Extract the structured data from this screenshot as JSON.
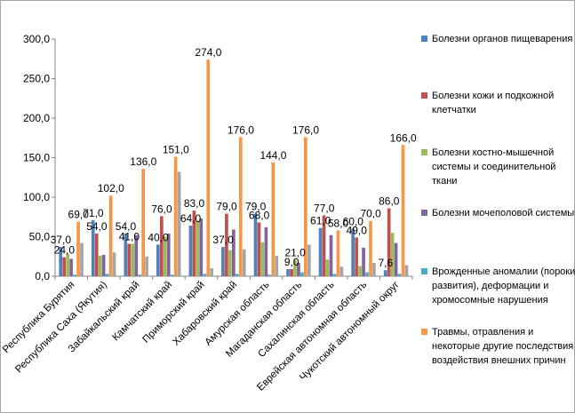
{
  "chart_data": {
    "type": "bar",
    "ylim": [
      0,
      300
    ],
    "yticks": [
      "0,0",
      "50,0",
      "100,0",
      "150,0",
      "200,0",
      "250,0",
      "300,0"
    ],
    "grid": false,
    "legend_position": "right",
    "categories": [
      "Республика Бурятия",
      "Республика Саха (Якутия)",
      "Забайкальский край",
      "Камчатский край",
      "Приморский край",
      "Хабаровский край",
      "Амурская область",
      "Магаданская область",
      "Сахалинская область",
      "Еврейская автономная область",
      "Чукотский автономный округ"
    ],
    "series": [
      {
        "name": "Болезни органов пищеварения",
        "color": "#4f81bd",
        "values": [
          37,
          71,
          54,
          40,
          64,
          37,
          79,
          9,
          61,
          60,
          7.6
        ]
      },
      {
        "name": "Болезни кожи и подкожной клетчатки",
        "color": "#c0504d",
        "values": [
          24,
          54,
          41,
          76,
          83,
          79,
          68,
          9,
          77,
          49,
          86
        ]
      },
      {
        "name": "Болезни костно-мышечной системы и соединительной ткани",
        "color": "#9bbb59",
        "values": [
          28,
          26,
          41,
          50,
          70,
          33,
          43,
          21,
          21,
          13,
          55
        ]
      },
      {
        "name": "Болезни мочеполовой системы",
        "color": "#8064a2",
        "values": [
          22,
          27,
          52,
          54,
          73,
          59,
          62,
          17,
          52,
          36,
          42
        ]
      },
      {
        "name": "Врожденные аномалии (пороки развития), деформации и хромосомные нарушения",
        "color": "#4bacc6",
        "values": [
          2,
          3,
          2,
          2,
          3,
          3,
          2,
          5,
          3,
          5,
          3
        ]
      },
      {
        "name": "Травмы, отравления и некоторые другие последствия воздействия внешних причин",
        "color": "#f79646",
        "values": [
          69,
          102,
          136,
          151,
          274,
          176,
          144,
          176,
          58,
          70,
          166
        ]
      },
      {
        "name": "",
        "color": "#a5a5a5",
        "values": [
          42,
          30,
          25,
          132,
          10,
          34,
          26,
          40,
          12,
          17,
          14
        ]
      }
    ],
    "data_labels": [
      {
        "text": "37,0",
        "cat": 0,
        "series": 0,
        "y": 37
      },
      {
        "text": "24,0",
        "cat": 0,
        "series": 1,
        "y": 24
      },
      {
        "text": "69,0",
        "cat": 0,
        "series": 5,
        "y": 69
      },
      {
        "text": "71,0",
        "cat": 1,
        "series": 0,
        "y": 71
      },
      {
        "text": "54,0",
        "cat": 1,
        "series": 1,
        "y": 54
      },
      {
        "text": "102,0",
        "cat": 1,
        "series": 5,
        "y": 102
      },
      {
        "text": "54,0",
        "cat": 2,
        "series": 0,
        "y": 54
      },
      {
        "text": "41,0",
        "cat": 2,
        "series": 1,
        "y": 41
      },
      {
        "text": "136,0",
        "cat": 2,
        "series": 5,
        "y": 136
      },
      {
        "text": "40,0",
        "cat": 3,
        "series": 0,
        "y": 40
      },
      {
        "text": "76,0",
        "cat": 3,
        "series": 1,
        "y": 76
      },
      {
        "text": "151,0",
        "cat": 3,
        "series": 5,
        "y": 151
      },
      {
        "text": "64,0",
        "cat": 4,
        "series": 0,
        "y": 64
      },
      {
        "text": "83,0",
        "cat": 4,
        "series": 1,
        "y": 83
      },
      {
        "text": "274,0",
        "cat": 4,
        "series": 5,
        "y": 274
      },
      {
        "text": "37,0",
        "cat": 5,
        "series": 0,
        "y": 37
      },
      {
        "text": "79,0",
        "cat": 5,
        "series": 1,
        "y": 79
      },
      {
        "text": "176,0",
        "cat": 5,
        "series": 5,
        "y": 176
      },
      {
        "text": "79,0",
        "cat": 6,
        "series": 0,
        "y": 79
      },
      {
        "text": "68,0",
        "cat": 6,
        "series": 1,
        "y": 68
      },
      {
        "text": "144,0",
        "cat": 6,
        "series": 5,
        "y": 144
      },
      {
        "text": "21,0",
        "cat": 7,
        "series": 2,
        "y": 21
      },
      {
        "text": "9,0",
        "cat": 7,
        "series": 1,
        "y": 9
      },
      {
        "text": "176,0",
        "cat": 7,
        "series": 5,
        "y": 176
      },
      {
        "text": "61,0",
        "cat": 8,
        "series": 0,
        "y": 61
      },
      {
        "text": "77,0",
        "cat": 8,
        "series": 1,
        "y": 77
      },
      {
        "text": "58,0",
        "cat": 8,
        "series": 5,
        "y": 58
      },
      {
        "text": "60,0",
        "cat": 9,
        "series": 0,
        "y": 60
      },
      {
        "text": "49,0",
        "cat": 9,
        "series": 1,
        "y": 49
      },
      {
        "text": "70,0",
        "cat": 9,
        "series": 5,
        "y": 70
      },
      {
        "text": "7,6",
        "cat": 10,
        "series": 0,
        "y": 7.6
      },
      {
        "text": "86,0",
        "cat": 10,
        "series": 1,
        "y": 86
      },
      {
        "text": "166,0",
        "cat": 10,
        "series": 5,
        "y": 166
      }
    ]
  }
}
